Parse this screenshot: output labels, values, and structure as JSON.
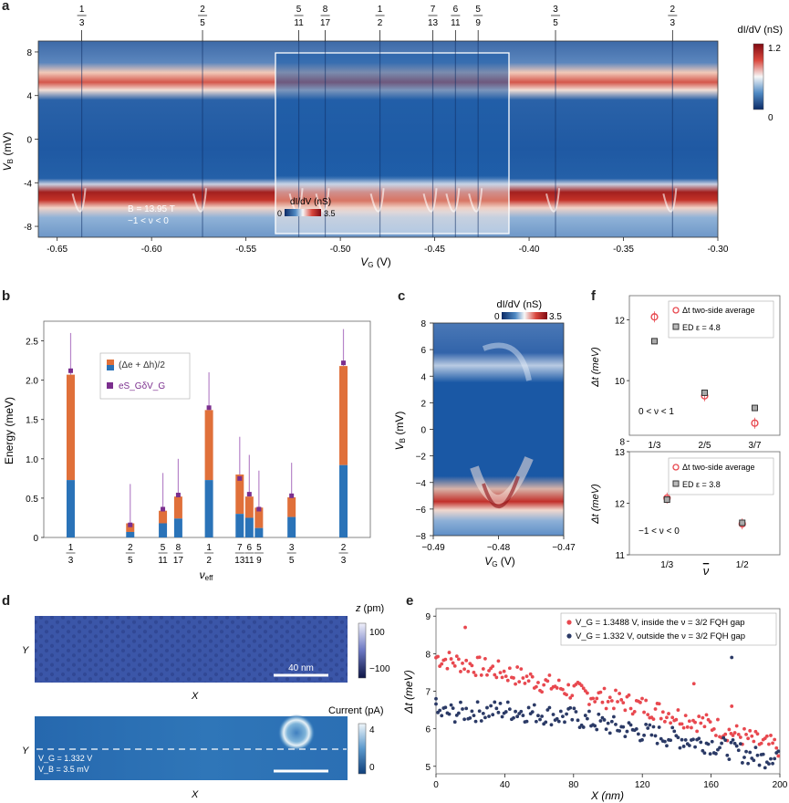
{
  "panels": {
    "a": {
      "label": "a",
      "fractions": [
        {
          "num": "1",
          "den": "3",
          "vg": -0.637
        },
        {
          "num": "2",
          "den": "5",
          "vg": -0.573
        },
        {
          "num": "5",
          "den": "11",
          "vg": -0.522
        },
        {
          "num": "8",
          "den": "17",
          "vg": -0.508
        },
        {
          "num": "1",
          "den": "2",
          "vg": -0.479
        },
        {
          "num": "7",
          "den": "13",
          "vg": -0.451
        },
        {
          "num": "6",
          "den": "11",
          "vg": -0.439
        },
        {
          "num": "5",
          "den": "9",
          "vg": -0.427
        },
        {
          "num": "3",
          "den": "5",
          "vg": -0.386
        },
        {
          "num": "2",
          "den": "3",
          "vg": -0.324
        }
      ],
      "xticks": [
        "-0.65",
        "-0.60",
        "-0.55",
        "-0.50",
        "-0.45",
        "-0.40",
        "-0.35",
        "-0.30"
      ],
      "xtick_values": [
        -0.65,
        -0.6,
        -0.55,
        -0.5,
        -0.45,
        -0.4,
        -0.35,
        -0.3
      ],
      "yticks": [
        "8",
        "4",
        "0",
        "-4",
        "-8"
      ],
      "ytick_values": [
        8,
        4,
        0,
        -4,
        -8
      ],
      "xlabel_main": "V",
      "xlabel_sub": "G",
      "xlabel_unit": "(V)",
      "ylabel": "V",
      "ylabel_sub": "B",
      "ylabel_unit": "(mV)",
      "colorbar_title": "dI/dV (nS)",
      "colorbar_max": "1.2",
      "colorbar_min": "0",
      "inset_colorbar_title": "dI/dV (nS)",
      "inset_colorbar_min": "0",
      "inset_colorbar_max": "3.5",
      "annotation_field": "B = 13.95 T",
      "annotation_range": "−1 < ν < 0"
    },
    "b": {
      "label": "b",
      "ylabel": "Energy (meV)",
      "xlabel": "ν",
      "xlabel_sub": "eff",
      "legend_gap": "(Δe + Δh)/2",
      "legend_shift": "eS_GδV_G",
      "yticks": [
        "0",
        "0.5",
        "1.0",
        "1.5",
        "2.0",
        "2.5"
      ]
    },
    "c": {
      "label": "c",
      "colorbar_title": "dI/dV (nS)",
      "colorbar_min": "0",
      "colorbar_max": "3.5",
      "xticks": [
        "−0.49",
        "−0.48",
        "−0.47"
      ],
      "yticks": [
        "8",
        "6",
        "4",
        "2",
        "0",
        "−2",
        "−4",
        "−6",
        "−8"
      ],
      "xlabel": "V",
      "xlabel_sub": "G",
      "xlabel_unit": "(V)",
      "ylabel": "V",
      "ylabel_sub": "B",
      "ylabel_unit": "(mV)"
    },
    "d": {
      "label": "d",
      "top_colorbar_title": "z (pm)",
      "top_colorbar_max": "100",
      "top_colorbar_min": "−100",
      "scalebar_label": "40 nm",
      "bottom_colorbar_title": "Current (pA)",
      "bottom_colorbar_max": "4",
      "bottom_colorbar_min": "0",
      "axis_x": "X",
      "axis_y": "Y",
      "vg_note": "V_G = 1.332 V",
      "vb_note": "V_B = 3.5 mV"
    },
    "e": {
      "label": "e",
      "legend_inside": "V_G = 1.3488 V, inside the ν = 3/2 FQH gap",
      "legend_outside": "V_G = 1.332 V, outside the ν = 3/2 FQH gap",
      "xlabel": "X (nm)",
      "ylabel": "Δt (meV)",
      "xticks": [
        "0",
        "40",
        "80",
        "120",
        "160",
        "200"
      ],
      "yticks": [
        "5",
        "6",
        "7",
        "8",
        "9"
      ]
    },
    "f": {
      "label": "f",
      "top_legend_1": "Δt two-side average",
      "top_legend_2": "ED ε = 4.8",
      "top_range": "0 < ν < 1",
      "top_yticks": [
        "8",
        "10",
        "12"
      ],
      "top_xticks": [
        "1/3",
        "2/5",
        "3/7"
      ],
      "bottom_legend_1": "Δt two-side average",
      "bottom_legend_2": "ED ε = 3.8",
      "bottom_range": "−1 < ν < 0",
      "bottom_yticks": [
        "11",
        "12",
        "13"
      ],
      "bottom_xticks": [
        "1/3",
        "1/2"
      ],
      "bottom_xlabel": "ν",
      "ylabel": "Δt (meV)"
    }
  },
  "chart_data": [
    {
      "panel": "b",
      "type": "bar",
      "title": "",
      "categories": [
        "1/3",
        "2/5",
        "5/11",
        "8/17",
        "1/2",
        "7/13",
        "6/11",
        "5/9",
        "3/5",
        "2/3"
      ],
      "x_positions": [
        1,
        2.55,
        3.4,
        3.8,
        4.6,
        5.4,
        5.65,
        5.9,
        6.75,
        8.1
      ],
      "series": [
        {
          "name": "blue",
          "values": [
            0.73,
            0.07,
            0.18,
            0.24,
            0.73,
            0.3,
            0.25,
            0.12,
            0.26,
            0.92
          ]
        },
        {
          "name": "(Δe + Δh)/2",
          "values": [
            2.07,
            0.18,
            0.34,
            0.52,
            1.62,
            0.8,
            0.52,
            0.38,
            0.51,
            2.18
          ]
        },
        {
          "name": "eS_GδV_G",
          "values": [
            2.12,
            0.16,
            0.36,
            0.54,
            1.65,
            0.75,
            0.55,
            0.36,
            0.53,
            2.22
          ]
        }
      ],
      "error_high": [
        2.6,
        0.68,
        0.82,
        1.0,
        2.1,
        1.28,
        1.05,
        0.85,
        0.95,
        2.65
      ],
      "xlabel": "ν_eff",
      "ylabel": "Energy (meV)",
      "ylim": [
        0,
        2.75
      ]
    },
    {
      "panel": "e",
      "type": "scatter",
      "title": "",
      "series": [
        {
          "name": "V_G = 1.3488 V, inside the ν = 3/2 FQH gap",
          "color": "#e8484f",
          "x_trend": [
            0,
            40,
            80,
            120,
            160,
            190,
            200
          ],
          "y_trend": [
            7.9,
            7.5,
            7.0,
            6.6,
            6.1,
            5.6,
            5.5
          ],
          "outliers": [
            [
              17,
              8.7
            ],
            [
              150,
              7.2
            ],
            [
              172,
              6.6
            ]
          ]
        },
        {
          "name": "V_G = 1.332 V, outside the ν = 3/2 FQH gap",
          "color": "#2b3a66",
          "x_trend": [
            0,
            40,
            80,
            120,
            160,
            190,
            200
          ],
          "y_trend": [
            6.4,
            6.5,
            6.3,
            5.9,
            5.6,
            5.2,
            5.4
          ],
          "outliers": [
            [
              172,
              7.9
            ],
            [
              0,
              6.8
            ]
          ]
        }
      ],
      "xlabel": "X (nm)",
      "ylabel": "Δt (meV)",
      "xlim": [
        0,
        200
      ],
      "ylim": [
        4.8,
        9.2
      ]
    },
    {
      "panel": "f-top",
      "type": "scatter",
      "categories": [
        "1/3",
        "2/5",
        "3/7"
      ],
      "series": [
        {
          "name": "Δt two-side average",
          "values": [
            12.1,
            9.5,
            8.6
          ]
        },
        {
          "name": "ED ε = 4.8",
          "values": [
            11.3,
            9.6,
            9.1
          ]
        }
      ],
      "ylim": [
        8.2,
        12.8
      ]
    },
    {
      "panel": "f-bottom",
      "type": "scatter",
      "categories": [
        "1/3",
        "1/2"
      ],
      "series": [
        {
          "name": "Δt two-side average",
          "values": [
            12.1,
            11.6
          ]
        },
        {
          "name": "ED ε = 3.8",
          "values": [
            12.07,
            11.62
          ]
        }
      ],
      "ylim": [
        11,
        13
      ]
    }
  ]
}
